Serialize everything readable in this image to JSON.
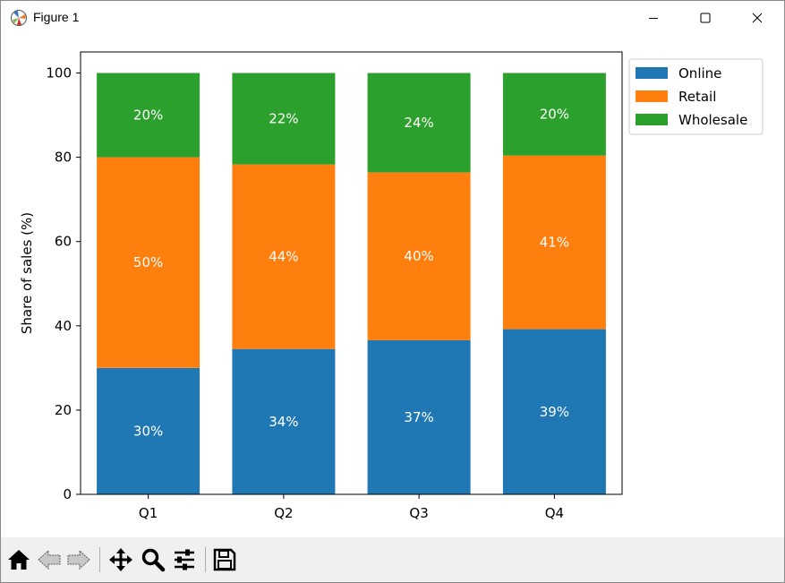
{
  "window": {
    "title": "Figure 1"
  },
  "toolbar": {
    "buttons": [
      {
        "icon": "home-icon"
      },
      {
        "icon": "back-arrow-icon"
      },
      {
        "icon": "forward-arrow-icon"
      },
      {
        "icon": "pan-move-icon"
      },
      {
        "icon": "zoom-magnifier-icon"
      },
      {
        "icon": "configure-subplots-icon"
      },
      {
        "icon": "save-floppy-icon"
      }
    ]
  },
  "chart_data": {
    "type": "bar",
    "stacked": true,
    "categories": [
      "Q1",
      "Q2",
      "Q3",
      "Q4"
    ],
    "series": [
      {
        "name": "Online",
        "color": "#1f77b4",
        "values": [
          30.0,
          34.5,
          36.6,
          39.2
        ],
        "labels": [
          "30%",
          "34%",
          "37%",
          "39%"
        ]
      },
      {
        "name": "Retail",
        "color": "#ff7f0e",
        "values": [
          50.0,
          43.8,
          39.8,
          41.2
        ],
        "labels": [
          "50%",
          "44%",
          "40%",
          "41%"
        ]
      },
      {
        "name": "Wholesale",
        "color": "#2ca02c",
        "values": [
          20.0,
          21.7,
          23.6,
          19.6
        ],
        "labels": [
          "20%",
          "22%",
          "24%",
          "20%"
        ]
      }
    ],
    "title": "",
    "xlabel": "",
    "ylabel": "Share of sales (%)",
    "ylim": [
      0,
      105
    ],
    "yticks": [
      0,
      20,
      40,
      60,
      80,
      100
    ],
    "label_color": "#ffffff",
    "legend_position": "outside upper right",
    "grid": false
  }
}
